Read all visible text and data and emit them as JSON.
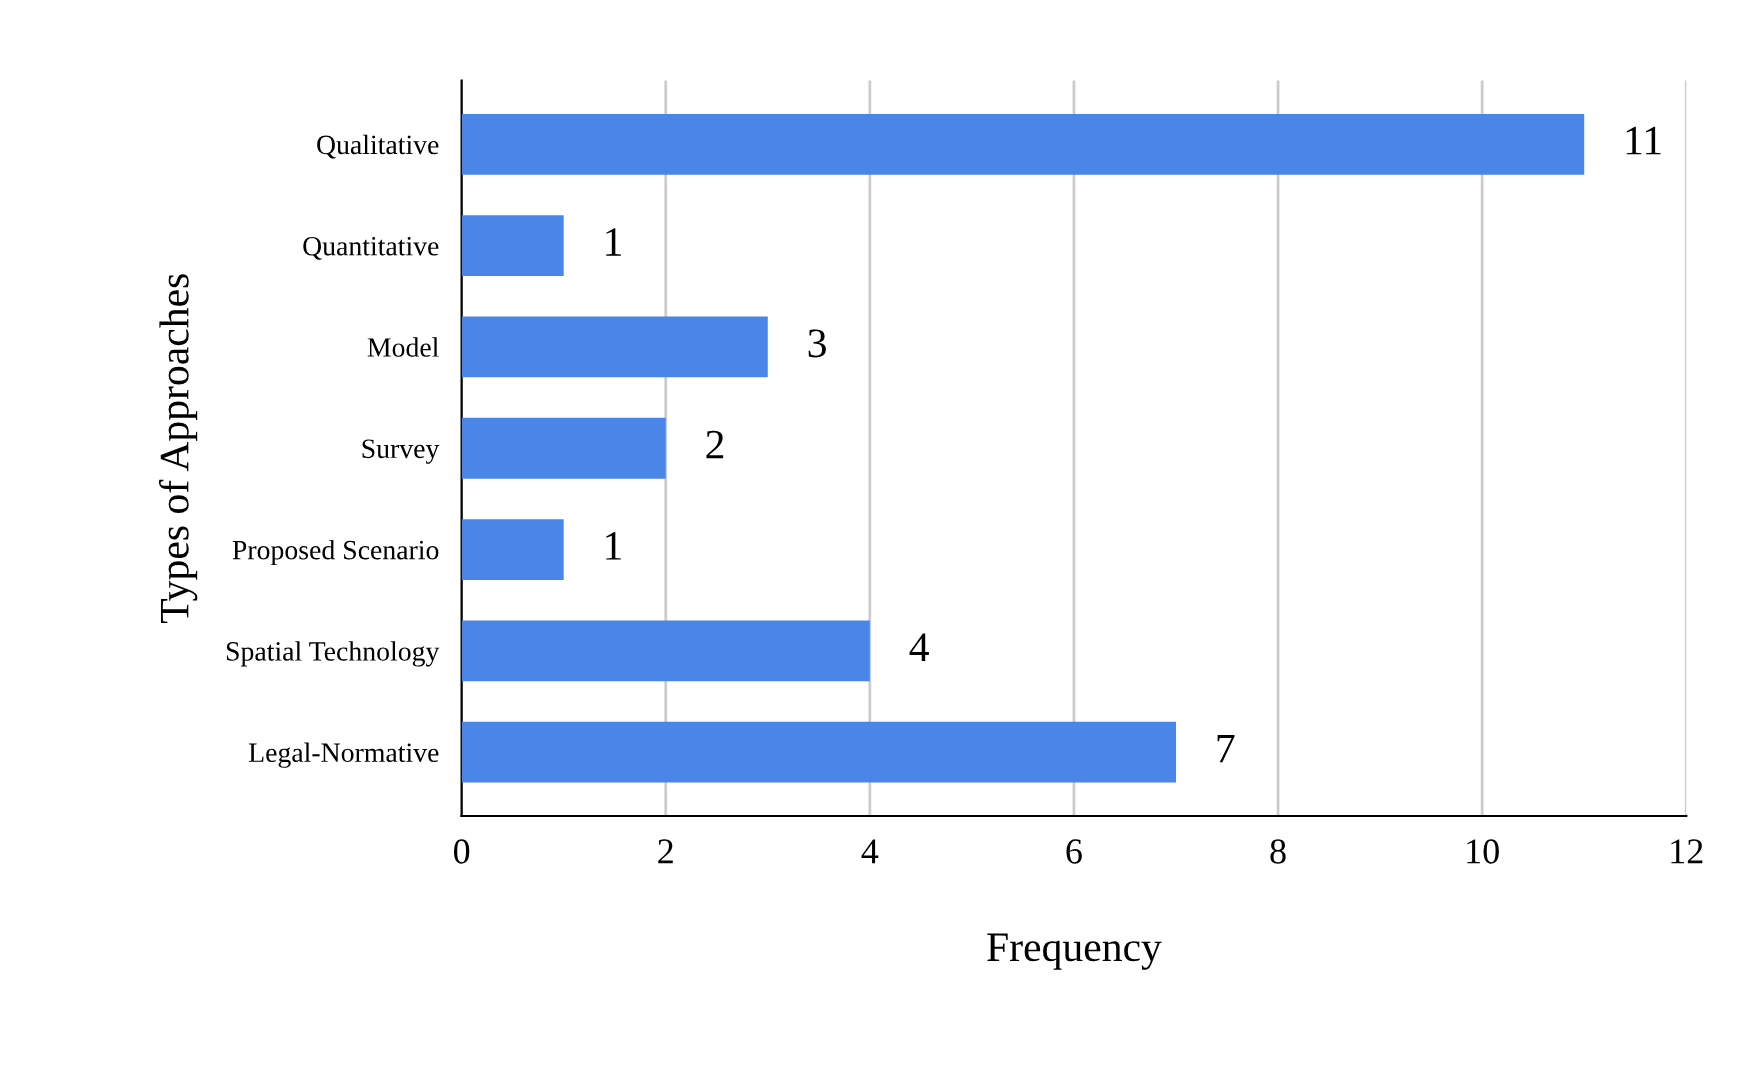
{
  "chart_data": {
    "type": "bar",
    "orientation": "horizontal",
    "xlabel": "Frequency",
    "ylabel": "Types of Approaches",
    "categories": [
      "Qualitative",
      "Quantitative",
      "Model",
      "Survey",
      "Proposed Scenario",
      "Spatial Technology",
      "Legal-Normative"
    ],
    "values": [
      11,
      1,
      3,
      2,
      1,
      4,
      7
    ],
    "color": "#4a86e8",
    "xlim": [
      0,
      12
    ],
    "xticks": [
      0,
      2,
      4,
      6,
      8,
      10,
      12
    ],
    "grid": "x",
    "data_labels": true
  }
}
